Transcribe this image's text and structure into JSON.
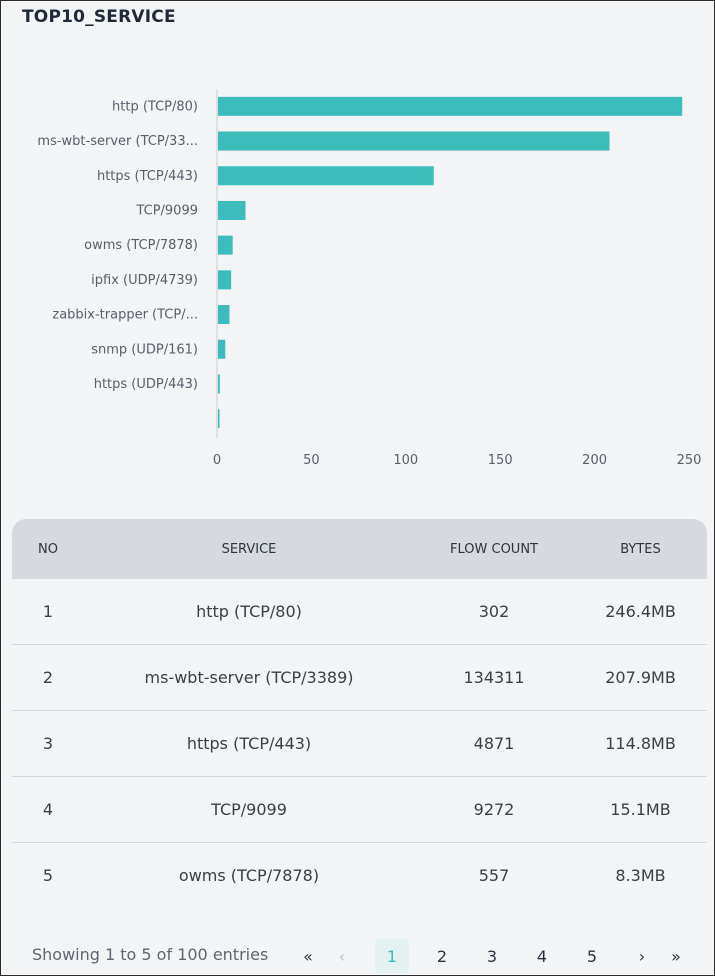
{
  "title": "TOP10_SERVICE",
  "chart_data": {
    "type": "bar",
    "orientation": "horizontal",
    "categories": [
      "http (TCP/80)",
      "ms-wbt-server (TCP/33...",
      "https (TCP/443)",
      "TCP/9099",
      "owms (TCP/7878)",
      "ipfix (UDP/4739)",
      "zabbix-trapper (TCP/...",
      "snmp (UDP/161)",
      "https (UDP/443)",
      ""
    ],
    "values": [
      246.4,
      207.9,
      114.8,
      15.1,
      8.3,
      7.5,
      6.6,
      4.4,
      1.5,
      1.0
    ],
    "xlim": [
      0,
      250
    ],
    "xticks": [
      "0",
      "50",
      "100",
      "150",
      "200",
      "250"
    ],
    "color": "#3dbcbc",
    "grid": false
  },
  "table": {
    "headers": [
      "NO",
      "SERVICE",
      "FLOW COUNT",
      "BYTES"
    ],
    "rows": [
      [
        "1",
        "http (TCP/80)",
        "302",
        "246.4MB"
      ],
      [
        "2",
        "ms-wbt-server (TCP/3389)",
        "134311",
        "207.9MB"
      ],
      [
        "3",
        "https (TCP/443)",
        "4871",
        "114.8MB"
      ],
      [
        "4",
        "TCP/9099",
        "9272",
        "15.1MB"
      ],
      [
        "5",
        "owms (TCP/7878)",
        "557",
        "8.3MB"
      ]
    ]
  },
  "pagination": {
    "showing": "Showing 1 to 5 of 100 entries",
    "first": "«",
    "prev": "‹",
    "pages": [
      "1",
      "2",
      "3",
      "4",
      "5"
    ],
    "next": "›",
    "last": "»",
    "current_page": "1"
  }
}
